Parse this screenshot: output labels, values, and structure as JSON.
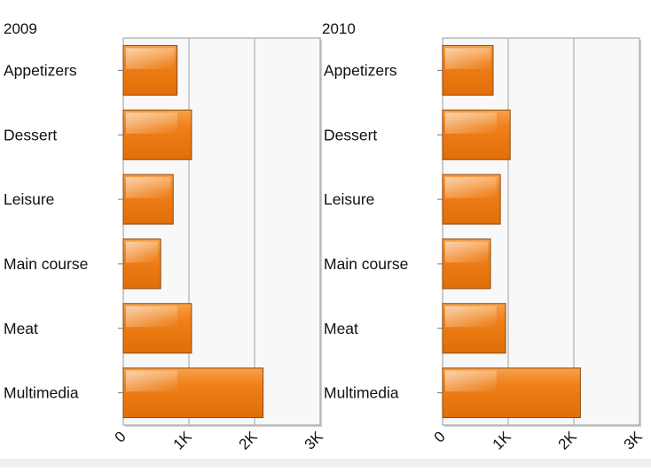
{
  "chart_data": [
    {
      "type": "bar",
      "orientation": "horizontal",
      "title": "2009",
      "categories": [
        "Appetizers",
        "Dessert",
        "Leisure",
        "Main course",
        "Meat",
        "Multimedia"
      ],
      "values": [
        820,
        1040,
        760,
        570,
        1040,
        2130
      ],
      "xlim": [
        0,
        3000
      ],
      "ticks": [
        {
          "value": 0,
          "label": "0"
        },
        {
          "value": 1000,
          "label": "1K"
        },
        {
          "value": 2000,
          "label": "2K"
        },
        {
          "value": 3000,
          "label": "3K"
        }
      ],
      "grid": true,
      "bar_color": "#ee7a12"
    },
    {
      "type": "bar",
      "orientation": "horizontal",
      "title": "2010",
      "categories": [
        "Appetizers",
        "Dessert",
        "Leisure",
        "Main course",
        "Meat",
        "Multimedia"
      ],
      "values": [
        770,
        1030,
        880,
        730,
        960,
        2100
      ],
      "xlim": [
        0,
        3000
      ],
      "ticks": [
        {
          "value": 0,
          "label": "0"
        },
        {
          "value": 1000,
          "label": "1K"
        },
        {
          "value": 2000,
          "label": "2K"
        },
        {
          "value": 3000,
          "label": "3K"
        }
      ],
      "grid": true,
      "bar_color": "#ee7a12"
    }
  ]
}
